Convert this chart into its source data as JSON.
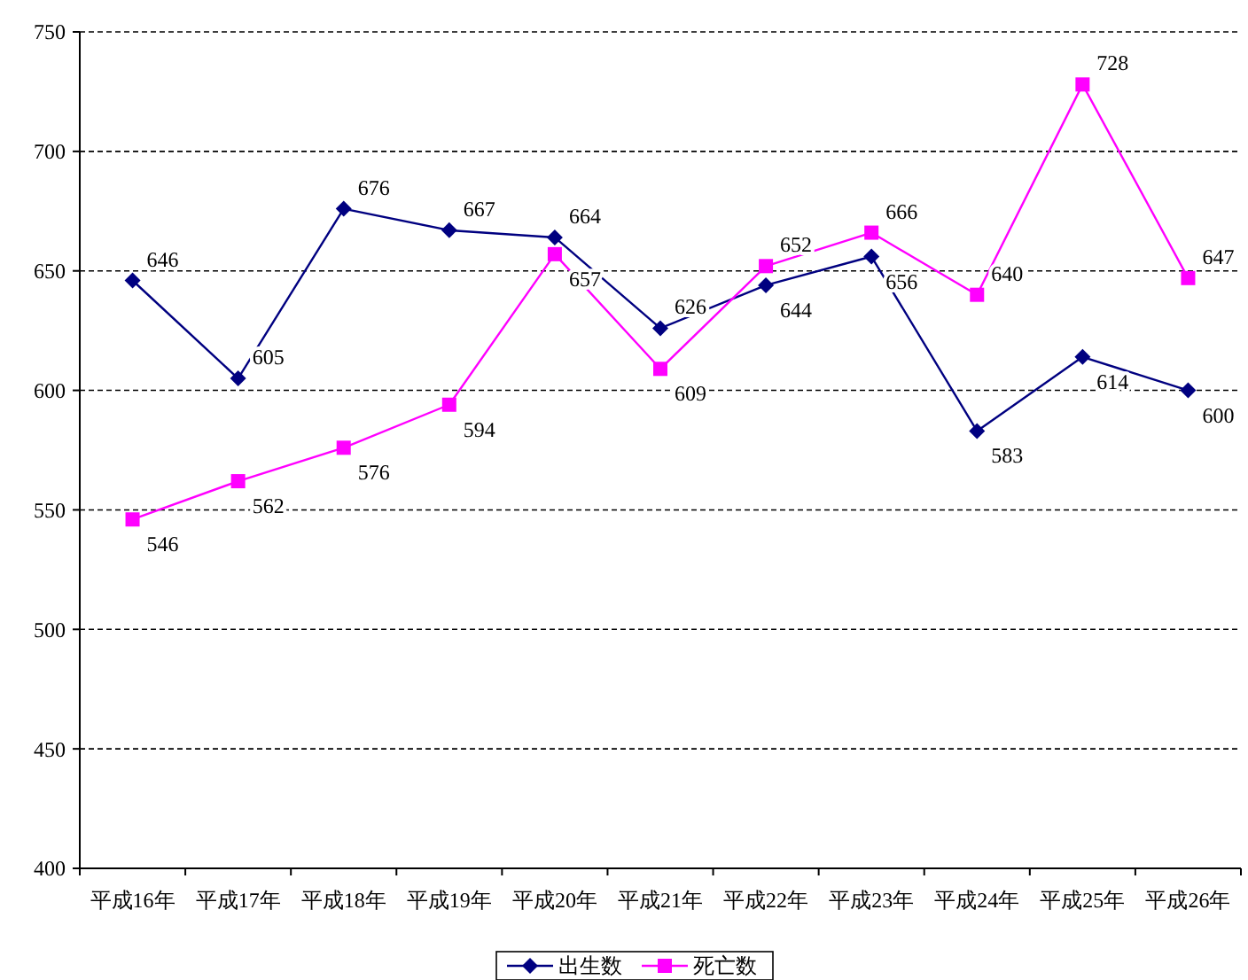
{
  "chart_data": {
    "type": "line",
    "categories": [
      "平成16年",
      "平成17年",
      "平成18年",
      "平成19年",
      "平成20年",
      "平成21年",
      "平成22年",
      "平成23年",
      "平成24年",
      "平成25年",
      "平成26年"
    ],
    "series": [
      {
        "name": "出生数",
        "color": "#000080",
        "marker": "diamond",
        "values": [
          646,
          605,
          676,
          667,
          664,
          626,
          644,
          656,
          583,
          614,
          600
        ]
      },
      {
        "name": "死亡数",
        "color": "#ff00ff",
        "marker": "square",
        "values": [
          546,
          562,
          576,
          594,
          657,
          609,
          652,
          666,
          640,
          728,
          647
        ]
      }
    ],
    "ylim": [
      400,
      750
    ],
    "yticks": [
      400,
      450,
      500,
      550,
      600,
      650,
      700,
      750
    ],
    "grid": "y",
    "legend": "bottom",
    "data_labels": true
  }
}
